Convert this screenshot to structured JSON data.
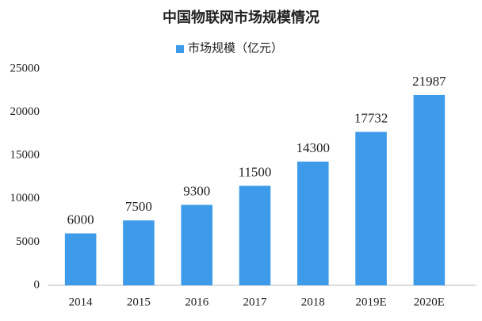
{
  "chart_data": {
    "type": "bar",
    "title": "中国物联网市场规模情况",
    "categories": [
      "2014",
      "2015",
      "2016",
      "2017",
      "2018",
      "2019E",
      "2020E"
    ],
    "series": [
      {
        "name": "市场规模（亿元）",
        "color": "#3d9be9",
        "values": [
          6000,
          7500,
          9300,
          11500,
          14300,
          17732,
          21987
        ]
      }
    ],
    "ylim": [
      0,
      25000
    ],
    "yticks": [
      0,
      5000,
      10000,
      15000,
      20000,
      25000
    ],
    "grid": false,
    "legend": "top"
  }
}
